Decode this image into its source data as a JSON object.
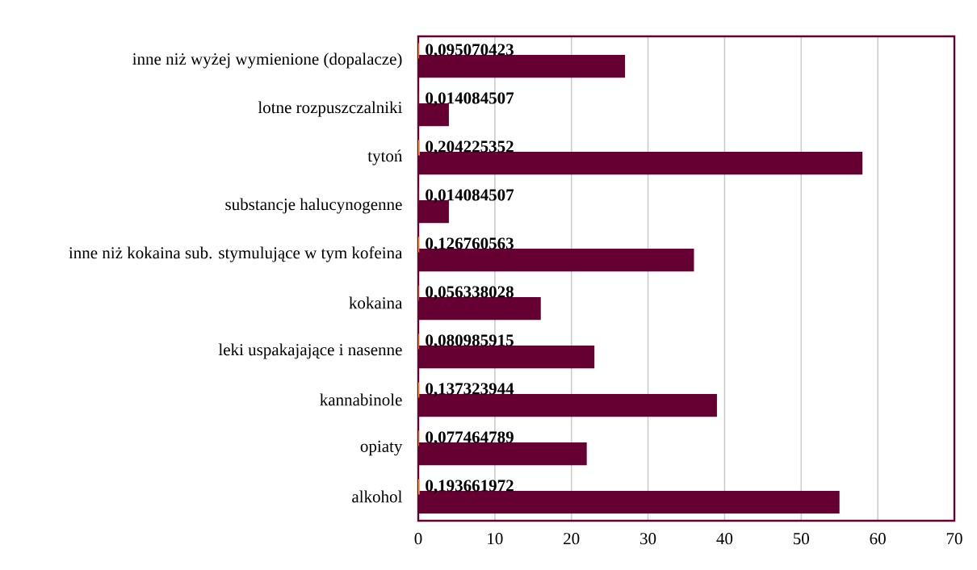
{
  "chart_data": {
    "type": "bar",
    "orientation": "horizontal",
    "categories": [
      "inne niż wyżej wymienione (dopalacze)",
      "lotne rozpuszczalniki",
      "tytoń",
      "substancje halucynogenne",
      "inne niż kokaina sub. stymulujące w tym kofeina",
      "kokaina",
      "leki uspakajające i nasenne",
      "kannabinole",
      "opiaty",
      "alkohol"
    ],
    "series": [
      {
        "color": "#660033",
        "values": [
          27,
          4,
          58,
          4,
          36,
          16,
          23,
          39,
          22,
          55
        ]
      },
      {
        "color": "#f79646",
        "values": [
          0.095070423,
          0.014084507,
          0.204225352,
          0.014084507,
          0.126760563,
          0.056338028,
          0.080985915,
          0.137323944,
          0.077464789,
          0.193661972
        ],
        "value_labels": [
          "0,095070423",
          "0,014084507",
          "0,204225352",
          "0,014084507",
          "0,126760563",
          "0,056338028",
          "0,080985915",
          "0,137323944",
          "0,077464789",
          "0,193661972"
        ]
      }
    ],
    "xlim": [
      0,
      70
    ],
    "xticks": [
      0,
      10,
      20,
      30,
      40,
      50,
      60,
      70
    ],
    "grid": "x"
  }
}
